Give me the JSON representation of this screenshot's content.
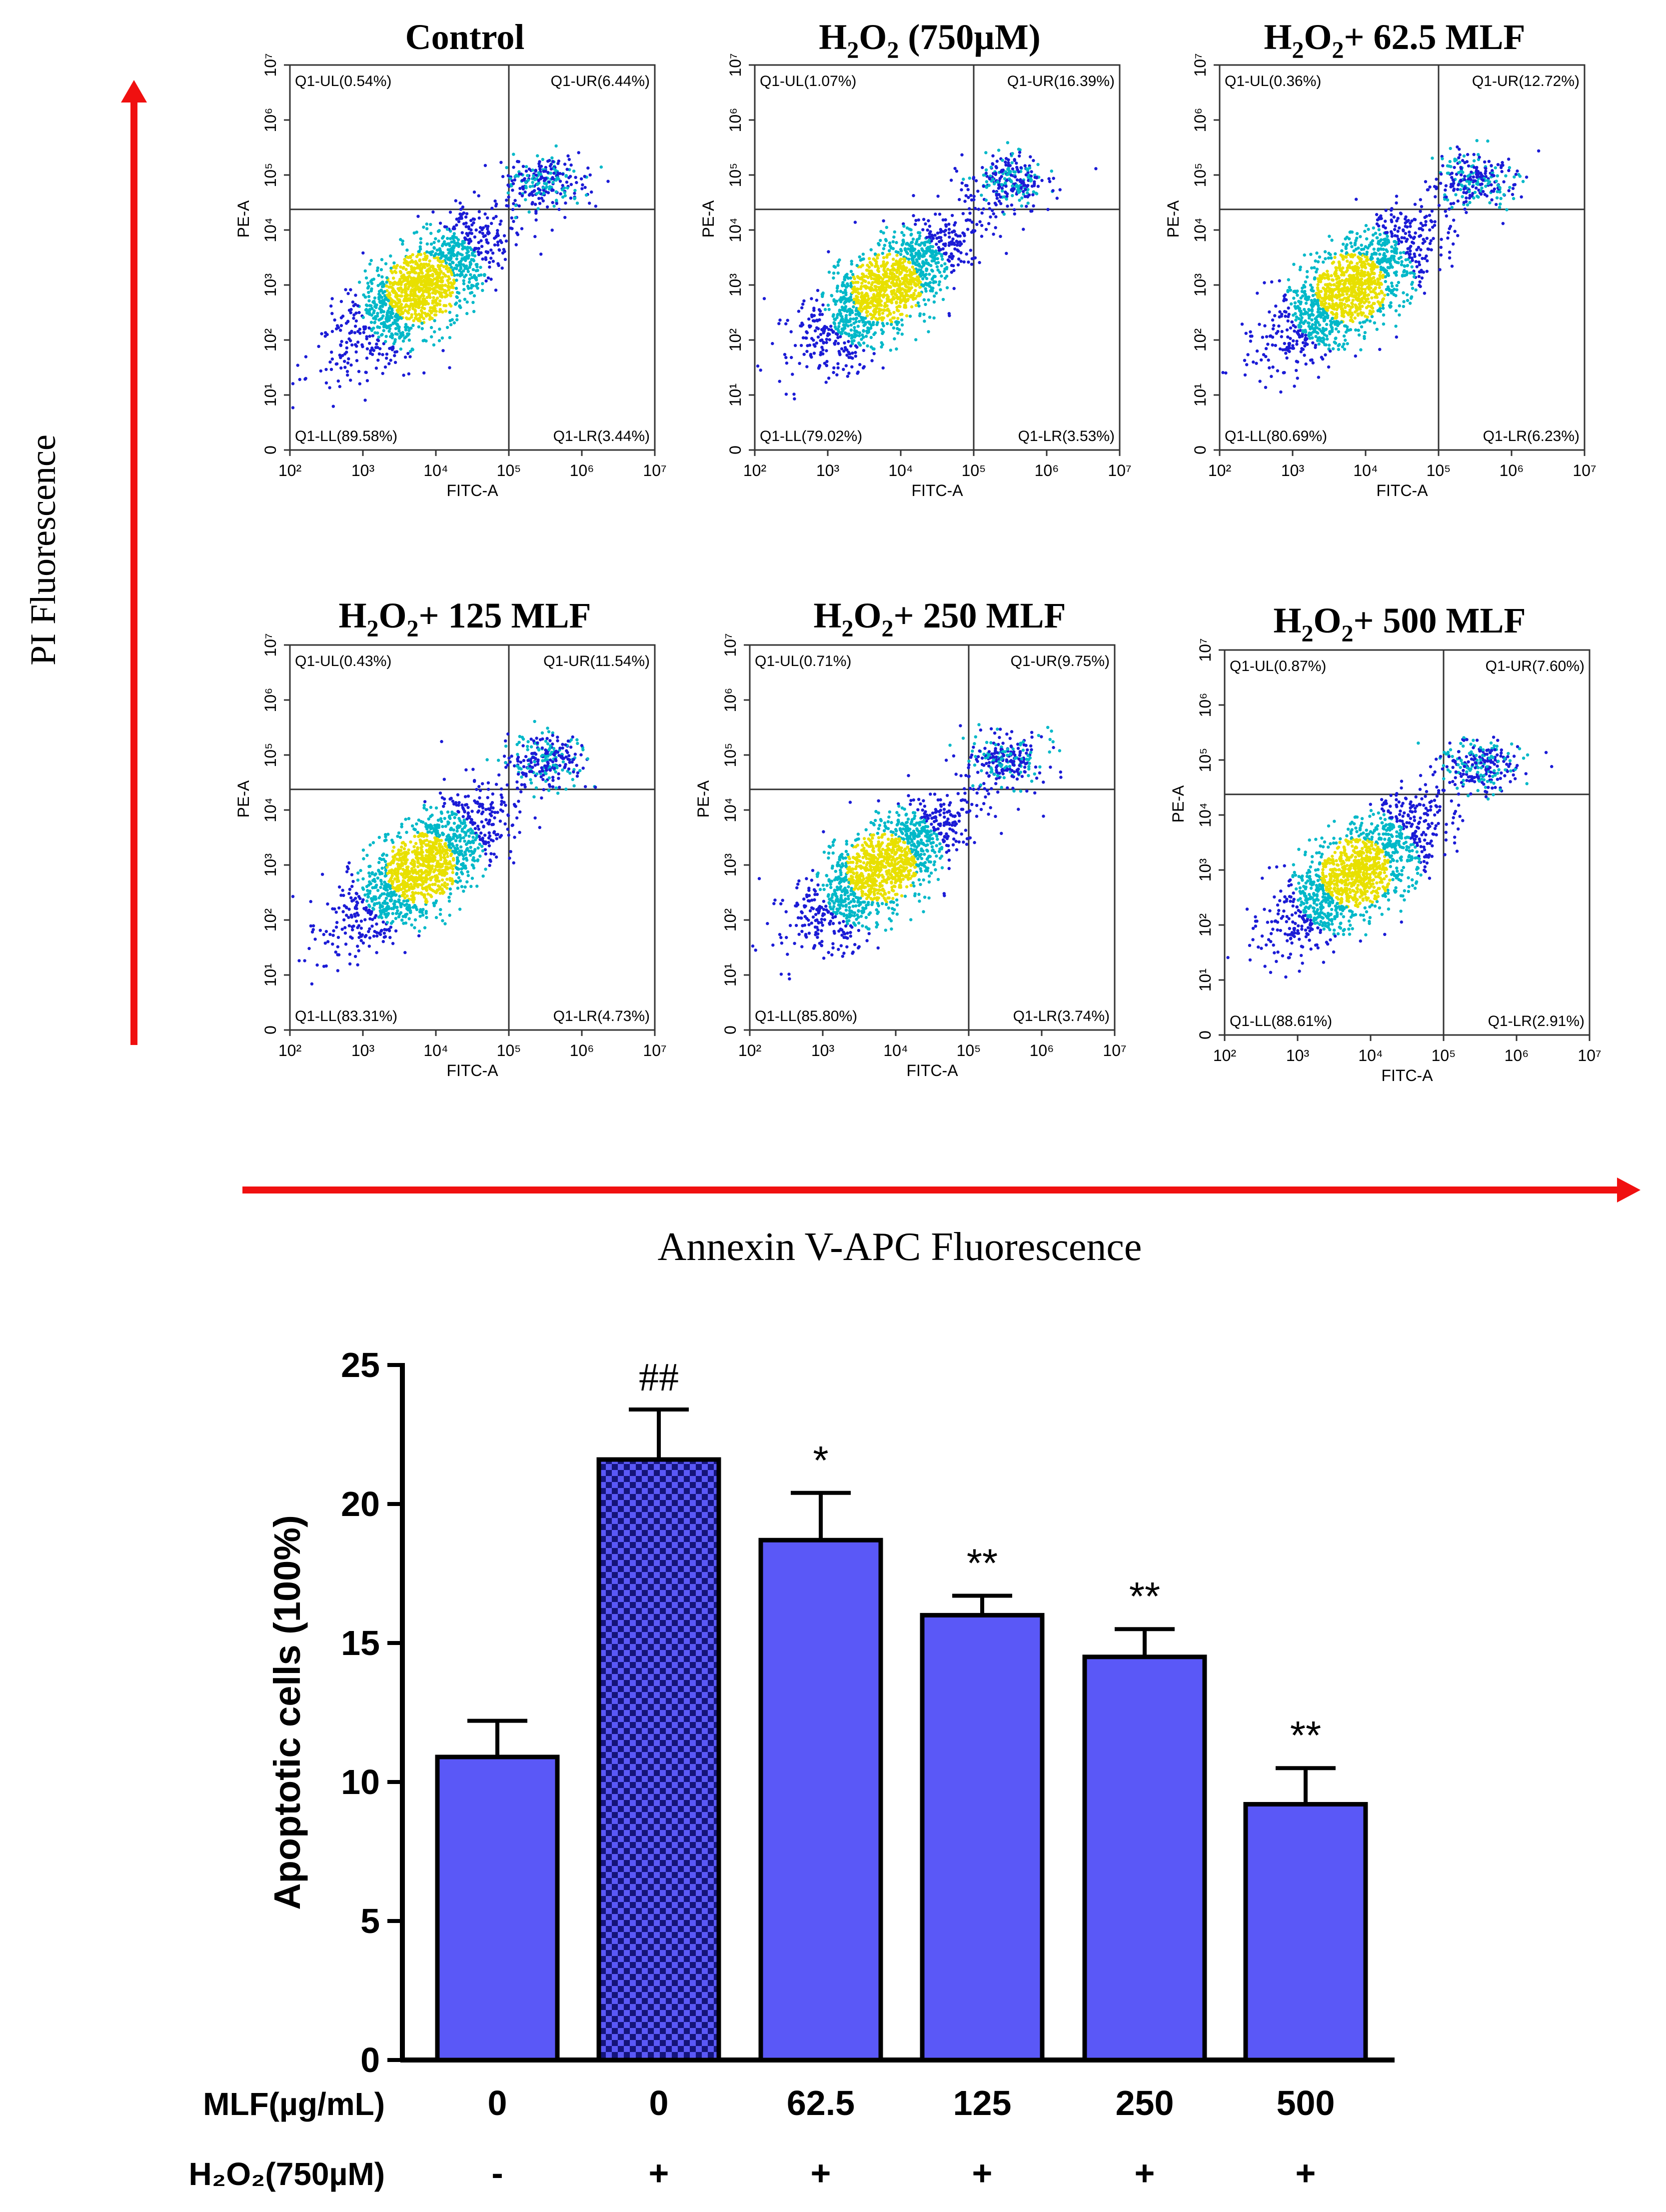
{
  "colors": {
    "arrow": "#f01010",
    "bar_fill": "#5a58f7",
    "bar_stroke": "#000000",
    "dot_low": "#1b1bd6",
    "dot_mid": "#00b8c8",
    "dot_high": "#e8e000"
  },
  "y_arrow_label": "PI  Fluorescence",
  "x_arrow_label": "Annexin V-APC  Fluorescence",
  "flow_panels": [
    {
      "title_pre": "Control",
      "title_sub": "",
      "title_post": "",
      "q_ul": "Q1-UL(0.54%)",
      "q_ur": "Q1-UR(6.44%)",
      "q_ll": "Q1-LL(89.58%)",
      "q_lr": "Q1-LR(3.44%)"
    },
    {
      "title_pre": "H",
      "title_sub": "2",
      "title_post": "O₂ (750µM)",
      "q_ul": "Q1-UL(1.07%)",
      "q_ur": "Q1-UR(16.39%)",
      "q_ll": "Q1-LL(79.02%)",
      "q_lr": "Q1-LR(3.53%)"
    },
    {
      "title_pre": "H",
      "title_sub": "2",
      "title_post": "O₂+ 62.5 MLF",
      "q_ul": "Q1-UL(0.36%)",
      "q_ur": "Q1-UR(12.72%)",
      "q_ll": "Q1-LL(80.69%)",
      "q_lr": "Q1-LR(6.23%)"
    },
    {
      "title_pre": "H",
      "title_sub": "2",
      "title_post": "O₂+ 125 MLF",
      "q_ul": "Q1-UL(0.43%)",
      "q_ur": "Q1-UR(11.54%)",
      "q_ll": "Q1-LL(83.31%)",
      "q_lr": "Q1-LR(4.73%)"
    },
    {
      "title_pre": "H",
      "title_sub": "2",
      "title_post": "O₂+ 250 MLF",
      "q_ul": "Q1-UL(0.71%)",
      "q_ur": "Q1-UR(9.75%)",
      "q_ll": "Q1-LL(85.80%)",
      "q_lr": "Q1-LR(3.74%)"
    },
    {
      "title_pre": "H",
      "title_sub": "2",
      "title_post": "O₂+ 500 MLF",
      "q_ul": "Q1-UL(0.87%)",
      "q_ur": "Q1-UR(7.60%)",
      "q_ll": "Q1-LL(88.61%)",
      "q_lr": "Q1-LR(2.91%)"
    }
  ],
  "flow_axes": {
    "xlabel": "FITC-A",
    "ylabel": "PE-A",
    "x_ticks": [
      "10²",
      "10³",
      "10⁴",
      "10⁵",
      "10⁶",
      "10⁷"
    ],
    "y_ticks": [
      "0",
      "10¹",
      "10²",
      "10³",
      "10⁴",
      "10⁵",
      "10⁶",
      "10⁷"
    ]
  },
  "chart_data": {
    "type": "bar",
    "categories": [
      "0",
      "0",
      "62.5",
      "125",
      "250",
      "500"
    ],
    "values": [
      10.9,
      21.6,
      18.7,
      16.0,
      14.5,
      9.2
    ],
    "errors": [
      1.3,
      1.8,
      1.7,
      0.7,
      1.0,
      1.3
    ],
    "significance": [
      "",
      "##",
      "*",
      "**",
      "**",
      "**"
    ],
    "patterned_bar_index": 1,
    "ylabel": "Apoptotic cells (100%)",
    "ylim": [
      0,
      25
    ],
    "y_ticks": [
      "0",
      "5",
      "10",
      "15",
      "20",
      "25"
    ],
    "row1_label": "MLF(µg/mL)",
    "row2_label": "H₂O₂(750µM)",
    "row2_values": [
      "-",
      "+",
      "+",
      "+",
      "+",
      "+"
    ]
  }
}
